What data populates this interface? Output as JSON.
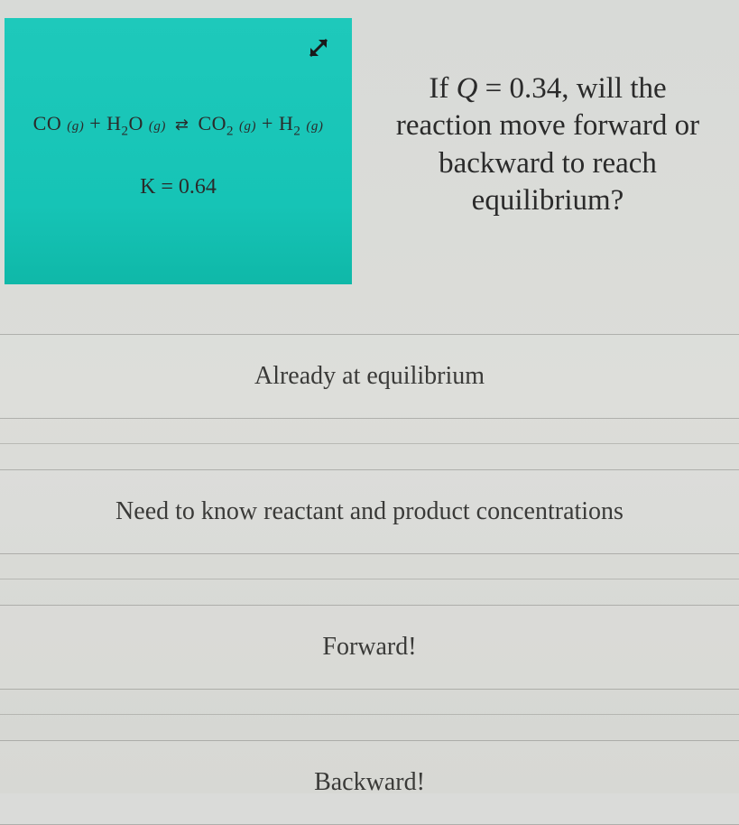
{
  "reaction": {
    "equation_html": "CO <span class='phase'>(g)</span> + H<sub>2</sub>O <span class='phase'>(g)</span> <span class='equilibrium-arrows'>⇄</span> CO<sub>2</sub> <span class='phase'>(g)</span> + H<sub>2</sub> <span class='phase'>(g)</span>",
    "k_label": "K = 0.64",
    "box_color": "#1ec9bb"
  },
  "question": {
    "html": "If <span class='q-var'>Q</span> = 0.34, will the reaction move forward or backward to reach equilibrium?"
  },
  "answers": [
    {
      "label": "Already at equilibrium"
    },
    {
      "label": "Need to know reactant and product concentrations"
    },
    {
      "label": "Forward!"
    },
    {
      "label": "Backward!"
    }
  ],
  "colors": {
    "background": "#d9dad6",
    "text": "#2a2a2a",
    "border": "#a8a8a2"
  }
}
